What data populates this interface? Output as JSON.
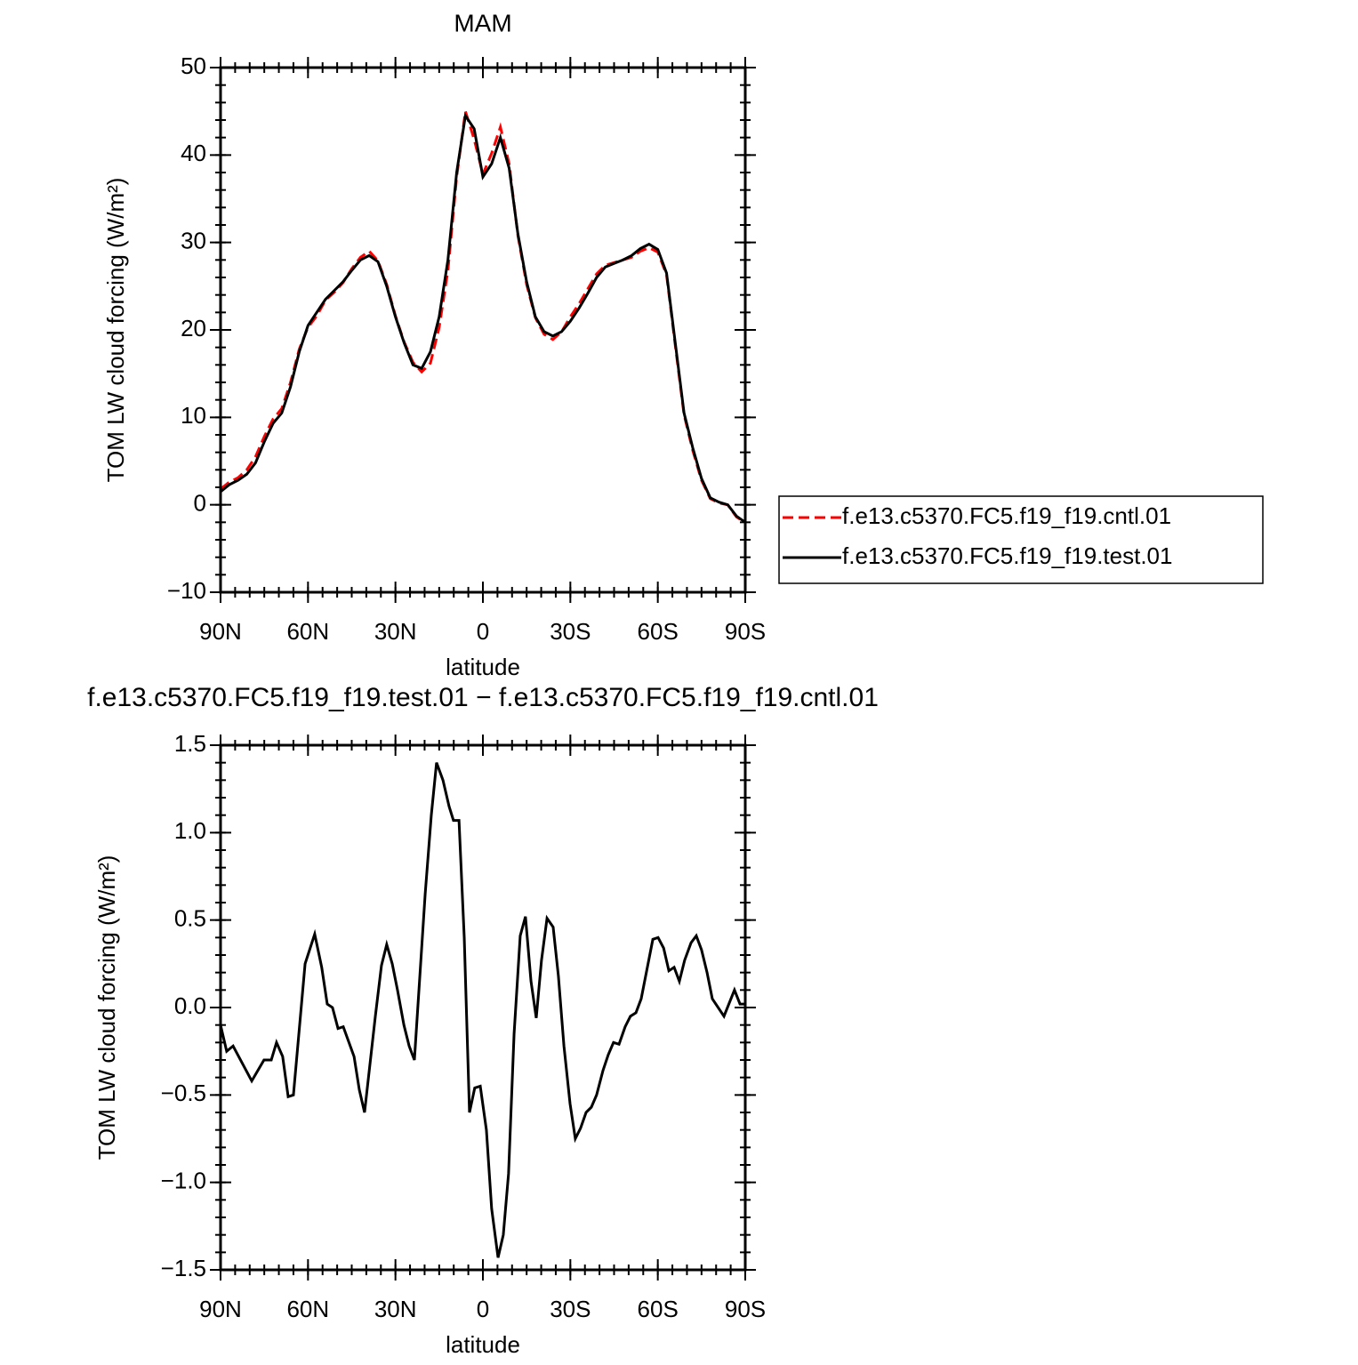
{
  "chart_data": [
    {
      "type": "line",
      "title": "MAM",
      "ylabel": "TOM LW cloud forcing (W/m²)",
      "xlabel": "latitude",
      "x": [
        90,
        87,
        84,
        81,
        78,
        75,
        72,
        69,
        66,
        63,
        60,
        57,
        54,
        51,
        48,
        45,
        42,
        39,
        36,
        33,
        30,
        27,
        24,
        21,
        18,
        15,
        12,
        9,
        6,
        3,
        0,
        -3,
        -6,
        -9,
        -12,
        -15,
        -18,
        -21,
        -24,
        -27,
        -30,
        -33,
        -36,
        -39,
        -42,
        -45,
        -48,
        -51,
        -54,
        -57,
        -60,
        -63,
        -66,
        -69,
        -72,
        -75,
        -78,
        -81,
        -84,
        -87,
        -90
      ],
      "series": [
        {
          "name": "f.e13.c5370.FC5.f19_f19.cntl.01",
          "color": "#ff0000",
          "line_style": "dashed",
          "values": [
            1.8,
            2.6,
            3.1,
            4,
            5.5,
            7.8,
            9.8,
            11,
            14,
            17.8,
            20.3,
            21.6,
            23.4,
            24.3,
            25.4,
            27,
            28.3,
            29,
            27.9,
            25.2,
            21.6,
            18.6,
            16.3,
            15.2,
            16.2,
            20.3,
            26.8,
            37.5,
            45,
            41.8,
            37.8,
            40.2,
            43.2,
            39,
            30.8,
            25.2,
            21.4,
            19.5,
            18.9,
            19.8,
            21.5,
            23,
            24.7,
            26.4,
            27.4,
            27.7,
            28,
            28.3,
            29,
            29.4,
            28.9,
            26.3,
            18.2,
            10.3,
            6.2,
            2.8,
            0.7,
            0.2,
            0,
            -1.4,
            -2
          ]
        },
        {
          "name": "f.e13.c5370.FC5.f19_f19.test.01",
          "color": "#000000",
          "line_style": "solid",
          "values": [
            1.5,
            2.3,
            2.8,
            3.5,
            4.8,
            7.2,
            9.3,
            10.5,
            13.5,
            17.5,
            20.5,
            22,
            23.5,
            24.5,
            25.5,
            26.8,
            28,
            28.5,
            27.8,
            25,
            21.5,
            18.5,
            16,
            15.6,
            17.5,
            21.5,
            28,
            38,
            44.5,
            43,
            37.5,
            39,
            42,
            38.5,
            31,
            25.5,
            21.5,
            19.8,
            19.3,
            19.8,
            21,
            22.5,
            24.2,
            26,
            27.2,
            27.6,
            28,
            28.5,
            29.3,
            29.8,
            29.2,
            26.5,
            18.5,
            10.5,
            6.5,
            3,
            0.8,
            0.3,
            0,
            -1.3,
            -2
          ]
        }
      ],
      "xlim": [
        90,
        -90
      ],
      "xticks": [
        {
          "value": 90,
          "label": "90N"
        },
        {
          "value": 60,
          "label": "60N"
        },
        {
          "value": 30,
          "label": "30N"
        },
        0,
        {
          "value": -30,
          "label": "30S"
        },
        {
          "value": -60,
          "label": "60S"
        },
        {
          "value": -90,
          "label": "90S"
        }
      ],
      "ylim": [
        -10,
        50
      ],
      "yticks": [
        {
          "value": -10,
          "label": "−10"
        },
        0,
        10,
        20,
        30,
        40,
        50
      ],
      "legend": "right"
    },
    {
      "type": "line",
      "title": "f.e13.c5370.FC5.f19_f19.test.01 − f.e13.c5370.FC5.f19_f19.cntl.01",
      "ylabel": "TOM LW cloud forcing (W/m²)",
      "xlabel": "latitude",
      "x": [
        90,
        87.9,
        85.7,
        79.3,
        75.1,
        72.6,
        70.8,
        68.7,
        66.8,
        65,
        61,
        57.7,
        55.3,
        53.4,
        51.6,
        49.7,
        47.9,
        44.2,
        42.4,
        40.6,
        36.9,
        34.8,
        33,
        31.1,
        29.3,
        27.1,
        25.3,
        23.5,
        19.8,
        17.7,
        15.9,
        13.7,
        11.6,
        10.1,
        8.2,
        6.4,
        4.6,
        2.8,
        0.9,
        -1.2,
        -3,
        -5.2,
        -7,
        -8.8,
        -10.7,
        -12.8,
        -14.6,
        -16.5,
        -18.3,
        -20.1,
        -22,
        -24.1,
        -25.9,
        -27.8,
        -29.9,
        -31.7,
        -33.5,
        -35.4,
        -37.2,
        -39,
        -41.2,
        -43,
        -44.8,
        -46.7,
        -48.8,
        -50.6,
        -52.5,
        -54.3,
        -58.3,
        -60.1,
        -62,
        -63.8,
        -65.6,
        -67.4,
        -69.2,
        -71.4,
        -73.2,
        -75,
        -76.9,
        -78.7,
        -82.7,
        -86.3,
        -88.2,
        -90
      ],
      "series": [
        {
          "color": "#000000",
          "line_style": "solid",
          "values": [
            -0.1,
            -0.25,
            -0.22,
            -0.42,
            -0.3,
            -0.3,
            -0.2,
            -0.28,
            -0.51,
            -0.5,
            0.25,
            0.42,
            0.23,
            0.02,
            0,
            -0.12,
            -0.11,
            -0.28,
            -0.47,
            -0.6,
            -0.05,
            0.24,
            0.36,
            0.25,
            0.1,
            -0.1,
            -0.22,
            -0.3,
            0.65,
            1.1,
            1.4,
            1.3,
            1.15,
            1.07,
            1.07,
            0.4,
            -0.6,
            -0.46,
            -0.45,
            -0.7,
            -1.15,
            -1.43,
            -1.3,
            -0.95,
            -0.15,
            0.41,
            0.52,
            0.15,
            -0.06,
            0.27,
            0.51,
            0.46,
            0.18,
            -0.22,
            -0.55,
            -0.75,
            -0.69,
            -0.6,
            -0.57,
            -0.5,
            -0.36,
            -0.27,
            -0.2,
            -0.21,
            -0.11,
            -0.05,
            -0.03,
            0.05,
            0.39,
            0.4,
            0.34,
            0.21,
            0.23,
            0.15,
            0.27,
            0.37,
            0.41,
            0.33,
            0.2,
            0.05,
            -0.05,
            0.1,
            0.02,
            0.02
          ]
        }
      ],
      "xlim": [
        90,
        -90
      ],
      "xticks": [
        {
          "value": 90,
          "label": "90N"
        },
        {
          "value": 60,
          "label": "60N"
        },
        {
          "value": 30,
          "label": "30N"
        },
        0,
        {
          "value": -30,
          "label": "30S"
        },
        {
          "value": -60,
          "label": "60S"
        },
        {
          "value": -90,
          "label": "90S"
        }
      ],
      "ylim": [
        -1.5,
        1.5
      ],
      "yticks": [
        {
          "value": -1.5,
          "label": "−1.5"
        },
        {
          "value": -1,
          "label": "−1.0"
        },
        {
          "value": -0.5,
          "label": "−0.5"
        },
        {
          "value": 0,
          "label": "0.0"
        },
        0.5,
        {
          "value": 1,
          "label": "1.0"
        },
        1.5
      ]
    }
  ]
}
